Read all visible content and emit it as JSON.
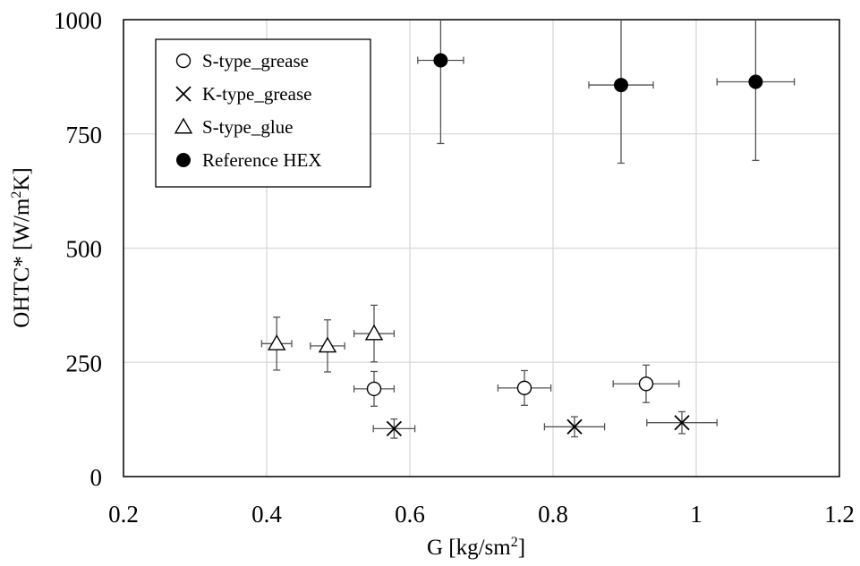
{
  "chart_data": {
    "type": "scatter",
    "xlabel": "G [kg/sm²]",
    "ylabel": "OHTC* [W/m²K]",
    "xlim": [
      0.2,
      1.2
    ],
    "ylim": [
      0,
      1000
    ],
    "xticks": [
      0.2,
      0.4,
      0.6,
      0.8,
      1,
      1.2
    ],
    "xtick_labels": [
      "0.2",
      "0.4",
      "0.6",
      "0.8",
      "1",
      "1.2"
    ],
    "yticks": [
      0,
      250,
      500,
      750,
      1000
    ],
    "ytick_labels": [
      "0",
      "250",
      "500",
      "750",
      "1000"
    ],
    "grid": true,
    "legend_position": "top-left",
    "series": [
      {
        "name": "S-type_grease",
        "marker": "circle-open",
        "points": [
          {
            "x": 0.55,
            "y": 192,
            "xerr": 0.028,
            "yerr": 38
          },
          {
            "x": 0.76,
            "y": 194,
            "xerr": 0.037,
            "yerr": 38
          },
          {
            "x": 0.93,
            "y": 203,
            "xerr": 0.046,
            "yerr": 41
          }
        ]
      },
      {
        "name": "K-type_grease",
        "marker": "x",
        "points": [
          {
            "x": 0.578,
            "y": 105,
            "xerr": 0.029,
            "yerr": 21
          },
          {
            "x": 0.83,
            "y": 109,
            "xerr": 0.042,
            "yerr": 22
          },
          {
            "x": 0.98,
            "y": 118,
            "xerr": 0.049,
            "yerr": 24
          }
        ]
      },
      {
        "name": "S-type_glue",
        "marker": "triangle-open",
        "points": [
          {
            "x": 0.414,
            "y": 291,
            "xerr": 0.021,
            "yerr": 58
          },
          {
            "x": 0.485,
            "y": 286,
            "xerr": 0.024,
            "yerr": 57
          },
          {
            "x": 0.55,
            "y": 313,
            "xerr": 0.028,
            "yerr": 62
          }
        ]
      },
      {
        "name": "Reference HEX",
        "marker": "circle-filled",
        "points": [
          {
            "x": 0.643,
            "y": 911,
            "xerr": 0.032,
            "yerr": 182
          },
          {
            "x": 0.895,
            "y": 857,
            "xerr": 0.045,
            "yerr": 171
          },
          {
            "x": 1.083,
            "y": 864,
            "xerr": 0.054,
            "yerr": 172
          }
        ]
      }
    ]
  }
}
